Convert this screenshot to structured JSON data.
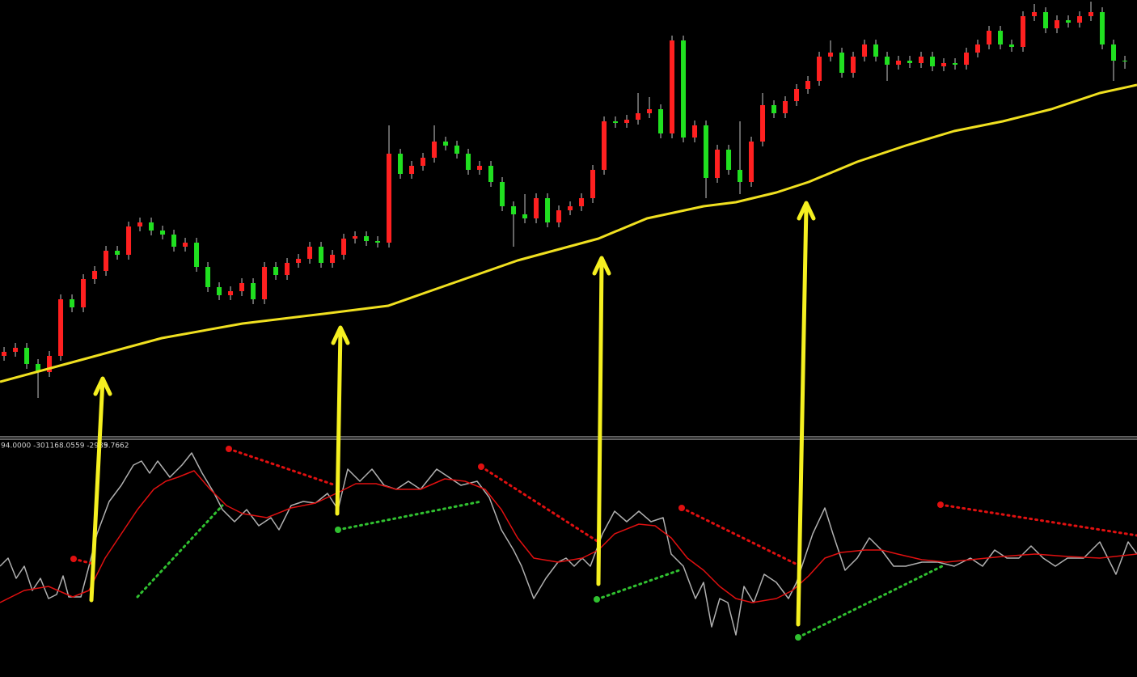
{
  "chart_data": [
    {
      "type": "candlestick",
      "open": [
        100,
        105,
        110,
        90,
        80,
        100,
        170,
        160,
        195,
        205,
        230,
        225,
        260,
        265,
        255,
        250,
        235,
        240,
        210,
        185,
        175,
        180,
        190,
        170,
        210,
        200,
        215,
        220,
        235,
        215,
        225,
        245,
        248,
        242,
        240,
        350,
        325,
        335,
        345,
        365,
        360,
        350,
        330,
        335,
        315,
        285,
        275,
        270,
        295,
        265,
        280,
        285,
        295,
        330,
        390,
        388,
        392,
        400,
        405,
        375,
        490,
        370,
        385,
        320,
        355,
        330,
        315,
        365,
        410,
        400,
        415,
        430,
        440,
        470,
        475,
        450,
        470,
        485,
        470,
        460,
        465,
        462,
        470,
        458,
        462,
        460,
        475,
        485,
        502,
        485,
        482,
        520,
        525,
        505,
        515,
        512,
        520,
        525,
        485,
        465
      ],
      "high": [
        111,
        116,
        116,
        96,
        106,
        176,
        176,
        201,
        211,
        236,
        236,
        266,
        271,
        271,
        261,
        256,
        246,
        246,
        216,
        191,
        186,
        196,
        196,
        216,
        216,
        221,
        226,
        241,
        241,
        231,
        251,
        254,
        254,
        248,
        385,
        356,
        341,
        351,
        385,
        371,
        366,
        356,
        341,
        341,
        321,
        291,
        300,
        301,
        301,
        286,
        291,
        301,
        336,
        396,
        396,
        398,
        425,
        420,
        411,
        496,
        496,
        391,
        391,
        361,
        361,
        390,
        371,
        425,
        416,
        421,
        436,
        446,
        476,
        490,
        481,
        476,
        491,
        491,
        476,
        471,
        471,
        476,
        476,
        468,
        468,
        481,
        491,
        508,
        508,
        491,
        526,
        535,
        531,
        521,
        521,
        526,
        538,
        531,
        491,
        471
      ],
      "low": [
        94,
        99,
        84,
        48,
        74,
        94,
        154,
        154,
        189,
        199,
        219,
        219,
        254,
        249,
        244,
        229,
        229,
        204,
        179,
        169,
        169,
        174,
        164,
        164,
        194,
        194,
        209,
        214,
        209,
        209,
        219,
        239,
        236,
        234,
        234,
        319,
        319,
        329,
        339,
        354,
        344,
        324,
        324,
        309,
        279,
        235,
        264,
        264,
        259,
        259,
        274,
        279,
        289,
        324,
        382,
        382,
        386,
        394,
        369,
        369,
        364,
        364,
        295,
        314,
        324,
        300,
        309,
        359,
        394,
        394,
        409,
        424,
        434,
        464,
        444,
        444,
        464,
        464,
        440,
        454,
        456,
        456,
        452,
        452,
        454,
        454,
        469,
        479,
        479,
        476,
        476,
        514,
        499,
        499,
        506,
        506,
        514,
        479,
        440,
        455
      ],
      "close": [
        105,
        110,
        90,
        80,
        100,
        170,
        160,
        195,
        205,
        230,
        225,
        260,
        265,
        255,
        250,
        235,
        240,
        210,
        185,
        175,
        180,
        190,
        170,
        210,
        200,
        215,
        220,
        235,
        215,
        225,
        245,
        248,
        242,
        240,
        350,
        325,
        335,
        345,
        365,
        360,
        350,
        330,
        335,
        315,
        285,
        275,
        270,
        295,
        265,
        280,
        285,
        295,
        330,
        390,
        388,
        392,
        400,
        405,
        375,
        490,
        370,
        385,
        320,
        355,
        330,
        315,
        365,
        410,
        400,
        415,
        430,
        440,
        470,
        475,
        450,
        470,
        485,
        470,
        460,
        465,
        462,
        470,
        458,
        462,
        460,
        475,
        485,
        502,
        485,
        482,
        520,
        525,
        505,
        515,
        512,
        520,
        525,
        485,
        465,
        465
      ],
      "up_color": "#ff2020",
      "down_color": "#20e020",
      "wick_color": "#c8c8c8",
      "xlim": [
        -0.36,
        100.07
      ],
      "ylim": [
        0,
        540
      ]
    },
    {
      "type": "line",
      "pane": 0,
      "x": [
        -0.36,
        6.79,
        13.93,
        21.07,
        28.21,
        33.93,
        39.64,
        45.36,
        52.5,
        56.79,
        61.79,
        64.64,
        68.21,
        71.07,
        75.36,
        79.64,
        83.93,
        88.21,
        92.5,
        96.79,
        100.07
      ],
      "values": [
        68,
        95,
        122,
        140,
        152,
        162,
        190,
        218,
        245,
        270,
        285,
        290,
        302,
        315,
        340,
        360,
        378,
        390,
        405,
        425,
        435
      ],
      "color": "#f0e020",
      "xlim": [
        -0.36,
        100.07
      ],
      "ylim": [
        0,
        540
      ]
    },
    {
      "type": "line",
      "pane": 1,
      "annotations": [
        "94.0000 -301168.0559 -2985",
        "9.7662"
      ],
      "series": [
        {
          "color": "#b0b0b0",
          "x": [
            0,
            10,
            20,
            30,
            40,
            50,
            60,
            70,
            78,
            85,
            100,
            110,
            120,
            135,
            150,
            165,
            175,
            185,
            195,
            210,
            225,
            237,
            250,
            265,
            275,
            290,
            305,
            320,
            335,
            345,
            360,
            375,
            390,
            405,
            418,
            430,
            445,
            460,
            475,
            490,
            505,
            520,
            540,
            555,
            570,
            590,
            605,
            620,
            635,
            645,
            660,
            675,
            690,
            700,
            710,
            720,
            730,
            745,
            760,
            775,
            790,
            805,
            820,
            830,
            845,
            860,
            870,
            880,
            890,
            900,
            910,
            920,
            932,
            945,
            960,
            975,
            985,
            995,
            1005,
            1020,
            1030,
            1045,
            1060,
            1075,
            1090,
            1105,
            1120,
            1140,
            1160,
            1180,
            1200,
            1215,
            1230,
            1245,
            1260,
            1275,
            1290,
            1305,
            1320,
            1340,
            1360,
            1380,
            1395,
            1406
          ],
          "values": [
            137,
            147,
            122,
            137,
            107,
            122,
            97,
            102,
            125,
            99,
            99,
            137,
            177,
            217,
            237,
            262,
            267,
            252,
            267,
            247,
            262,
            277,
            252,
            227,
            207,
            192,
            207,
            187,
            197,
            182,
            212,
            217,
            215,
            227,
            207,
            257,
            242,
            257,
            237,
            232,
            242,
            232,
            257,
            247,
            237,
            242,
            222,
            182,
            157,
            137,
            97,
            122,
            142,
            147,
            137,
            147,
            137,
            177,
            205,
            192,
            205,
            192,
            197,
            152,
            137,
            97,
            117,
            62,
            97,
            92,
            52,
            112,
            92,
            127,
            117,
            97,
            117,
            147,
            177,
            209,
            177,
            132,
            147,
            172,
            157,
            137,
            137,
            142,
            142,
            137,
            147,
            137,
            157,
            147,
            147,
            162,
            147,
            137,
            147,
            147,
            167,
            127,
            167,
            152
          ]
        },
        {
          "color": "#e01010",
          "x": [
            0,
            30,
            60,
            90,
            110,
            130,
            150,
            170,
            190,
            205,
            220,
            240,
            260,
            280,
            300,
            330,
            360,
            390,
            420,
            440,
            465,
            490,
            520,
            550,
            575,
            600,
            620,
            640,
            660,
            690,
            720,
            740,
            760,
            790,
            810,
            830,
            850,
            870,
            890,
            910,
            930,
            960,
            980,
            1000,
            1020,
            1040,
            1070,
            1090,
            1110,
            1140,
            1170,
            1200,
            1240,
            1280,
            1320,
            1360,
            1406
          ],
          "values": [
            92,
            107,
            112,
            99,
            107,
            147,
            177,
            207,
            232,
            242,
            247,
            255,
            232,
            212,
            202,
            197,
            209,
            215,
            229,
            239,
            239,
            232,
            232,
            245,
            242,
            232,
            207,
            172,
            147,
            142,
            147,
            157,
            177,
            189,
            187,
            172,
            147,
            132,
            112,
            97,
            92,
            97,
            107,
            125,
            147,
            154,
            157,
            157,
            152,
            145,
            142,
            145,
            149,
            152,
            149,
            147,
            152
          ]
        }
      ],
      "xlim": [
        0,
        1406
      ],
      "ylim": [
        0,
        292
      ]
    }
  ]
}
